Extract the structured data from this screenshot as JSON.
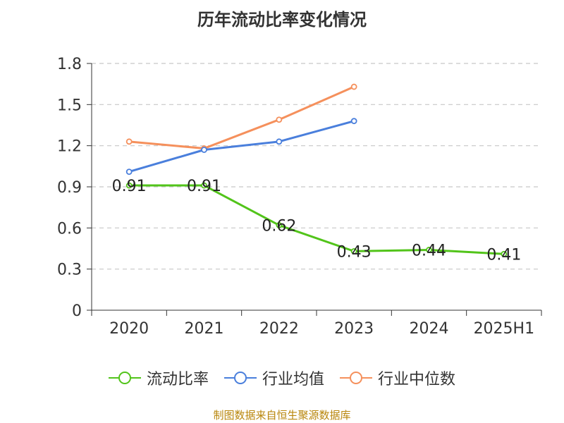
{
  "chart_data": {
    "type": "line",
    "title": "历年流动比率变化情况",
    "categories": [
      "2020",
      "2021",
      "2022",
      "2023",
      "2024",
      "2025H1"
    ],
    "ylim": [
      0,
      1.8
    ],
    "yticks": [
      "0",
      "0.3",
      "0.6",
      "0.9",
      "1.2",
      "1.5",
      "1.8"
    ],
    "grid": true,
    "legend_position": "bottom",
    "series": [
      {
        "name": "流动比率",
        "color": "#52c41a",
        "values": [
          0.91,
          0.91,
          0.62,
          0.43,
          0.44,
          0.41
        ],
        "labels": [
          "0.91",
          "0.91",
          "0.62",
          "0.43",
          "0.44",
          "0.41"
        ],
        "show_labels": true
      },
      {
        "name": "行业均值",
        "color": "#4a7fdc",
        "values": [
          1.01,
          1.17,
          1.23,
          1.38,
          null,
          null
        ],
        "show_labels": false
      },
      {
        "name": "行业中位数",
        "color": "#f5905c",
        "values": [
          1.23,
          1.18,
          1.39,
          1.63,
          null,
          null
        ],
        "show_labels": false
      }
    ]
  },
  "source": "制图数据来自恒生聚源数据库"
}
